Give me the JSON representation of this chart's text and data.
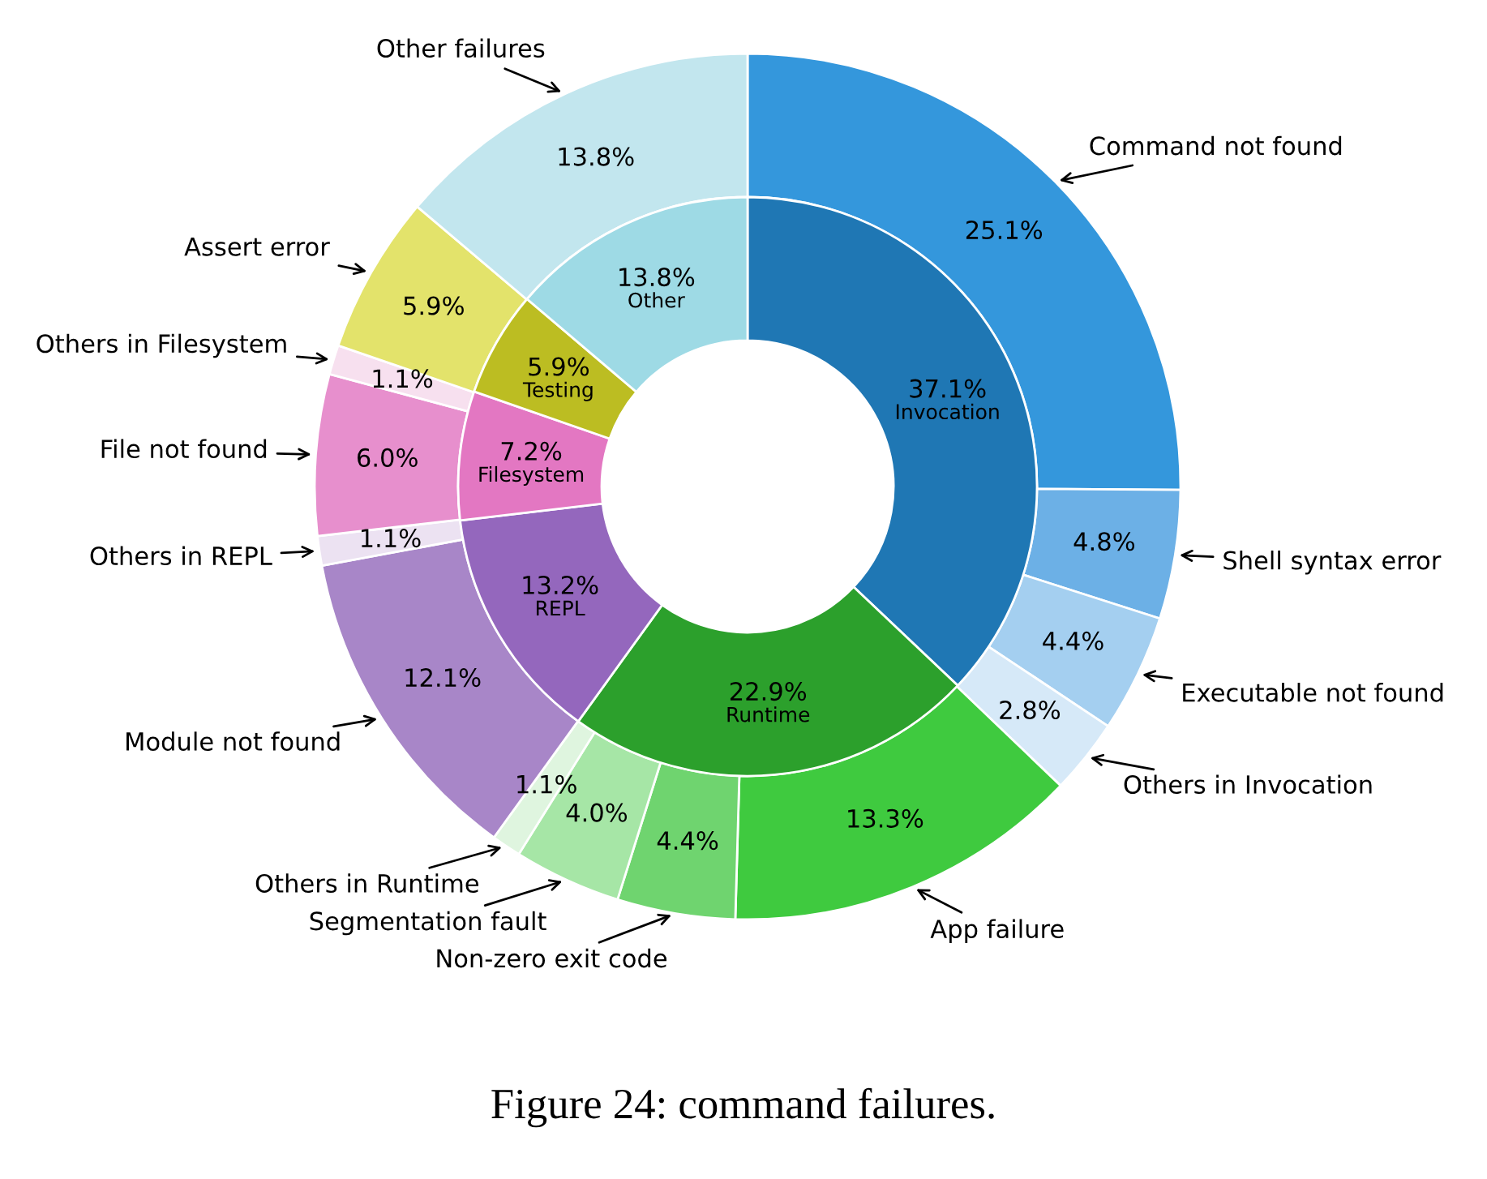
{
  "chart_data": {
    "type": "donut",
    "categories": [
      "Command not found",
      "Shell syntax error",
      "Executable not found",
      "Others in Invocation",
      "App failure",
      "Non-zero exit code",
      "Segmentation fault",
      "Others in Runtime",
      "Module not found",
      "Others in REPL",
      "File not found",
      "Others in Filesystem",
      "Assert error",
      "Other failures"
    ],
    "series": [
      {
        "values": [
          25.1,
          4.8,
          4.4,
          2.8,
          13.3,
          4.4,
          4.0,
          1.1,
          12.1,
          1.1,
          6.0,
          1.1,
          5.9,
          13.8
        ],
        "value_labels": [
          "25.1%",
          "4.8%",
          "4.4%",
          "2.8%",
          "13.3%",
          "4.4%",
          "4.0%",
          "1.1%",
          "12.1%",
          "1.1%",
          "6.0%",
          "1.1%",
          "5.9%",
          "13.8%"
        ],
        "colors": [
          "#3497dc",
          "#6cb0e6",
          "#a4cff0",
          "#d6e9f8",
          "#3fca3f",
          "#6fd46f",
          "#a6e6a6",
          "#dff5df",
          "#a886c8",
          "#ece2f2",
          "#e78fcd",
          "#f7e0ef",
          "#e3e36b",
          "#c2e6ee"
        ]
      },
      {
        "values": [
          37.1,
          null,
          null,
          null,
          22.9,
          null,
          null,
          null,
          13.2,
          null,
          7.2,
          null,
          5.9,
          13.8
        ],
        "value_labels": [
          "37.1%",
          null,
          null,
          null,
          "22.9%",
          null,
          null,
          null,
          "13.2%",
          null,
          "7.2%",
          null,
          "5.9%",
          "13.8%"
        ],
        "colors": [
          "#1f77b4",
          null,
          null,
          null,
          "#2ca02c",
          null,
          null,
          null,
          "#9467bd",
          null,
          "#e377c2",
          null,
          "#bcbd22",
          "#9edae5"
        ]
      }
    ],
    "annotations": [
      "Figure 24: command failures.",
      {
        "text": "Invocation",
        "x": "Command not found"
      },
      {
        "text": "Runtime",
        "x": "App failure"
      },
      {
        "text": "REPL",
        "x": "Module not found"
      },
      {
        "text": "Filesystem",
        "x": "File not found"
      },
      {
        "text": "Testing",
        "x": "Assert error"
      },
      {
        "text": "Other",
        "x": "Other failures"
      }
    ]
  }
}
